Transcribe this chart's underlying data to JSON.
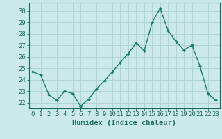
{
  "x": [
    0,
    1,
    2,
    3,
    4,
    5,
    6,
    7,
    8,
    9,
    10,
    11,
    12,
    13,
    14,
    15,
    16,
    17,
    18,
    19,
    20,
    21,
    22,
    23
  ],
  "y": [
    24.7,
    24.4,
    22.7,
    22.2,
    23.0,
    22.8,
    21.7,
    22.3,
    23.2,
    23.9,
    24.7,
    25.5,
    26.3,
    27.2,
    26.5,
    29.0,
    30.2,
    28.3,
    27.3,
    26.6,
    27.0,
    25.2,
    22.8,
    22.2
  ],
  "line_color": "#1a7a6e",
  "marker": "D",
  "marker_size": 2.2,
  "bg_color": "#cce9e9",
  "grid_color": "#afd4d4",
  "ylabel_vals": [
    22,
    23,
    24,
    25,
    26,
    27,
    28,
    29,
    30
  ],
  "ylim": [
    21.5,
    30.7
  ],
  "xlim": [
    -0.5,
    23.5
  ],
  "xlabel": "Humidex (Indice chaleur)",
  "xlabel_fontsize": 7.5,
  "tick_fontsize": 6.5,
  "axis_color": "#1a6b5e",
  "title": ""
}
